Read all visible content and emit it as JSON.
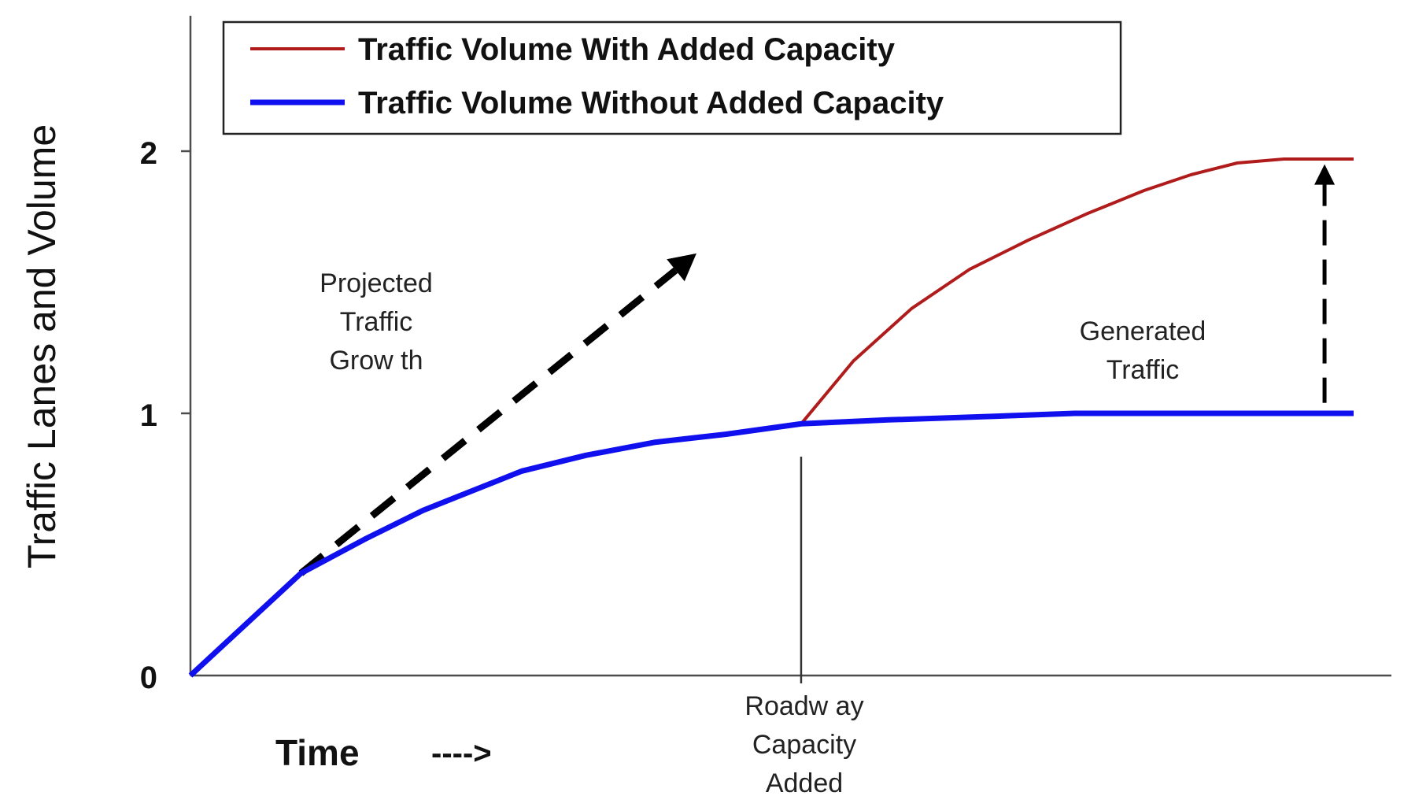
{
  "chart_data": {
    "type": "line",
    "ylabel": "Traffic Lanes and Volume",
    "xlabel": "Time",
    "xlabel_arrow": "---->",
    "ylim": [
      0,
      2.5
    ],
    "xlim": [
      0,
      100
    ],
    "yticks": [
      "0",
      "1",
      "2"
    ],
    "grid": false,
    "legend_position": "top",
    "series": [
      {
        "name": "Traffic Volume With Added Capacity",
        "color": "#b01c1c",
        "x": [
          52.5,
          57,
          62,
          67,
          72,
          77,
          82,
          86,
          90,
          94,
          96,
          100
        ],
        "y": [
          0.96,
          1.2,
          1.4,
          1.55,
          1.66,
          1.76,
          1.85,
          1.91,
          1.955,
          1.97,
          1.97,
          1.97
        ]
      },
      {
        "name": "Traffic Volume Without Added Capacity",
        "color": "#1010ee",
        "x": [
          0,
          9.5,
          15,
          20,
          28.5,
          34,
          40,
          46,
          52.5,
          60,
          70,
          76,
          85,
          100
        ],
        "y": [
          0,
          0.39,
          0.52,
          0.63,
          0.78,
          0.84,
          0.89,
          0.92,
          0.96,
          0.975,
          0.99,
          1.0,
          1.0,
          1.0
        ]
      }
    ],
    "annotations": {
      "projected": {
        "lines": [
          "Projected",
          "Traffic",
          "Grow th"
        ]
      },
      "generated": {
        "lines": [
          "Generated",
          "Traffic"
        ]
      },
      "capacity": {
        "lines": [
          "Roadw ay",
          "Capacity",
          "Added"
        ]
      }
    },
    "projected_arrow": {
      "from": [
        9.5,
        0.39
      ],
      "to": [
        43.5,
        1.61
      ]
    },
    "generated_arrow": {
      "x": 97.5,
      "from": 1.04,
      "to": 1.95
    },
    "capacity_marker_x": 52.5
  }
}
